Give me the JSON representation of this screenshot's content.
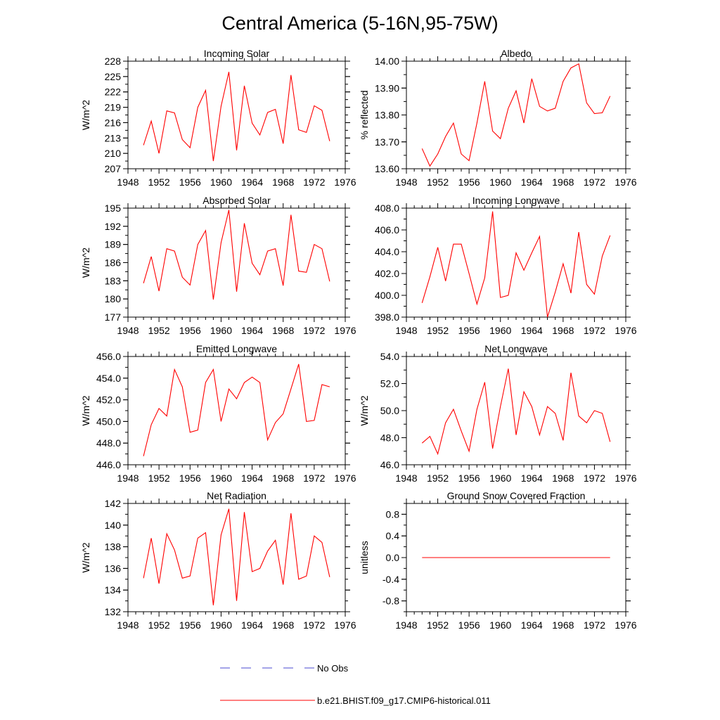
{
  "title": "Central America (5-16N,95-75W)",
  "legend": {
    "placement": "bottom",
    "items": [
      {
        "label": "No Obs",
        "color": "#4a4ad0",
        "style": "dashed"
      },
      {
        "label": "b.e21.BHIST.f09_g17.CMIP6-historical.011",
        "color": "#ff0000",
        "style": "solid"
      }
    ]
  },
  "chart_data": [
    {
      "type": "line",
      "title": "Incoming Solar",
      "ylabel": "W/m^2",
      "xlim": [
        1948,
        1976
      ],
      "ylim": [
        207,
        228
      ],
      "xticks": [
        "1948",
        "1952",
        "1956",
        "1960",
        "1964",
        "1968",
        "1972",
        "1976"
      ],
      "yticks": [
        "207",
        "210",
        "213",
        "216",
        "219",
        "222",
        "225",
        "228"
      ],
      "x": [
        1950,
        1951,
        1952,
        1953,
        1954,
        1955,
        1956,
        1957,
        1958,
        1959,
        1960,
        1961,
        1962,
        1963,
        1964,
        1965,
        1966,
        1967,
        1968,
        1969,
        1970,
        1971,
        1972,
        1973,
        1974
      ],
      "series": [
        {
          "color": "#ff0000",
          "values": [
            211.6,
            216.3,
            210.0,
            218.3,
            217.9,
            212.7,
            211.1,
            219.0,
            222.3,
            208.5,
            219.2,
            225.9,
            210.6,
            223.2,
            215.9,
            213.6,
            218.0,
            218.6,
            211.9,
            225.3,
            214.6,
            214.1,
            219.3,
            218.4,
            212.4
          ]
        }
      ]
    },
    {
      "type": "line",
      "title": "Albedo",
      "ylabel": "% reflected",
      "xlim": [
        1948,
        1976
      ],
      "ylim": [
        13.6,
        14.0
      ],
      "xticks": [
        "1948",
        "1952",
        "1956",
        "1960",
        "1964",
        "1968",
        "1972",
        "1976"
      ],
      "yticks": [
        "13.60",
        "13.70",
        "13.80",
        "13.90",
        "14.00"
      ],
      "x": [
        1950,
        1951,
        1952,
        1953,
        1954,
        1955,
        1956,
        1957,
        1958,
        1959,
        1960,
        1961,
        1962,
        1963,
        1964,
        1965,
        1966,
        1967,
        1968,
        1969,
        1970,
        1971,
        1972,
        1973,
        1974
      ],
      "series": [
        {
          "color": "#ff0000",
          "values": [
            13.675,
            13.61,
            13.655,
            13.72,
            13.77,
            13.655,
            13.63,
            13.77,
            13.925,
            13.74,
            13.712,
            13.825,
            13.89,
            13.77,
            13.935,
            13.832,
            13.815,
            13.825,
            13.925,
            13.975,
            13.99,
            13.845,
            13.805,
            13.808,
            13.87
          ]
        }
      ]
    },
    {
      "type": "line",
      "title": "Absorbed Solar",
      "ylabel": "W/m^2",
      "xlim": [
        1948,
        1976
      ],
      "ylim": [
        177,
        195
      ],
      "xticks": [
        "1948",
        "1952",
        "1956",
        "1960",
        "1964",
        "1968",
        "1972",
        "1976"
      ],
      "yticks": [
        "177",
        "180",
        "183",
        "186",
        "189",
        "192",
        "195"
      ],
      "x": [
        1950,
        1951,
        1952,
        1953,
        1954,
        1955,
        1956,
        1957,
        1958,
        1959,
        1960,
        1961,
        1962,
        1963,
        1964,
        1965,
        1966,
        1967,
        1968,
        1969,
        1970,
        1971,
        1972,
        1973,
        1974
      ],
      "series": [
        {
          "color": "#ff0000",
          "values": [
            182.6,
            187.0,
            181.3,
            188.3,
            187.9,
            183.6,
            182.3,
            189.0,
            191.3,
            179.9,
            189.3,
            194.7,
            181.2,
            192.5,
            185.9,
            184.0,
            187.9,
            188.3,
            182.2,
            193.9,
            184.6,
            184.4,
            189.0,
            188.3,
            182.9
          ]
        }
      ]
    },
    {
      "type": "line",
      "title": "Incoming Longwave",
      "ylabel": "",
      "xlim": [
        1948,
        1976
      ],
      "ylim": [
        398.0,
        408.0
      ],
      "xticks": [
        "1948",
        "1952",
        "1956",
        "1960",
        "1964",
        "1968",
        "1972",
        "1976"
      ],
      "yticks": [
        "398.0",
        "400.0",
        "402.0",
        "404.0",
        "406.0",
        "408.0"
      ],
      "x": [
        1950,
        1951,
        1952,
        1953,
        1954,
        1955,
        1956,
        1957,
        1958,
        1959,
        1960,
        1961,
        1962,
        1963,
        1964,
        1965,
        1966,
        1967,
        1968,
        1969,
        1970,
        1971,
        1972,
        1973,
        1974
      ],
      "series": [
        {
          "color": "#ff0000",
          "values": [
            399.3,
            401.7,
            404.4,
            401.3,
            404.7,
            404.7,
            402.0,
            399.2,
            401.6,
            407.7,
            399.8,
            400.0,
            403.9,
            402.3,
            403.9,
            405.4,
            398.0,
            400.3,
            402.9,
            400.2,
            405.8,
            401.0,
            400.1,
            403.6,
            405.5
          ]
        }
      ]
    },
    {
      "type": "line",
      "title": "Emitted Longwave",
      "ylabel": "W/m^2",
      "xlim": [
        1948,
        1976
      ],
      "ylim": [
        446.0,
        456.0
      ],
      "xticks": [
        "1948",
        "1952",
        "1956",
        "1960",
        "1964",
        "1968",
        "1972",
        "1976"
      ],
      "yticks": [
        "446.0",
        "448.0",
        "450.0",
        "452.0",
        "454.0",
        "456.0"
      ],
      "x": [
        1950,
        1951,
        1952,
        1953,
        1954,
        1955,
        1956,
        1957,
        1958,
        1959,
        1960,
        1961,
        1962,
        1963,
        1964,
        1965,
        1966,
        1967,
        1968,
        1969,
        1970,
        1971,
        1972,
        1973,
        1974
      ],
      "series": [
        {
          "color": "#ff0000",
          "values": [
            446.8,
            449.7,
            451.2,
            450.5,
            454.8,
            453.2,
            449.0,
            449.2,
            453.6,
            454.8,
            450.0,
            453.0,
            452.1,
            453.6,
            454.1,
            453.6,
            448.3,
            449.9,
            450.7,
            453.0,
            455.3,
            450.0,
            450.1,
            453.4,
            453.2
          ]
        }
      ]
    },
    {
      "type": "line",
      "title": "Net Longwave",
      "ylabel": "W/m^2",
      "xlim": [
        1948,
        1976
      ],
      "ylim": [
        46.0,
        54.0
      ],
      "xticks": [
        "1948",
        "1952",
        "1956",
        "1960",
        "1964",
        "1968",
        "1972",
        "1976"
      ],
      "yticks": [
        "46.0",
        "48.0",
        "50.0",
        "52.0",
        "54.0"
      ],
      "x": [
        1950,
        1951,
        1952,
        1953,
        1954,
        1955,
        1956,
        1957,
        1958,
        1959,
        1960,
        1961,
        1962,
        1963,
        1964,
        1965,
        1966,
        1967,
        1968,
        1969,
        1970,
        1971,
        1972,
        1973,
        1974
      ],
      "series": [
        {
          "color": "#ff0000",
          "values": [
            47.6,
            48.1,
            46.8,
            49.1,
            50.1,
            48.5,
            47.0,
            50.1,
            52.1,
            47.2,
            50.3,
            53.1,
            48.2,
            51.4,
            50.3,
            48.2,
            50.3,
            49.8,
            47.8,
            52.8,
            49.6,
            49.1,
            50.0,
            49.8,
            47.7
          ]
        }
      ]
    },
    {
      "type": "line",
      "title": "Net Radiation",
      "ylabel": "W/m^2",
      "xlim": [
        1948,
        1976
      ],
      "ylim": [
        132,
        142
      ],
      "xticks": [
        "1948",
        "1952",
        "1956",
        "1960",
        "1964",
        "1968",
        "1972",
        "1976"
      ],
      "yticks": [
        "132",
        "134",
        "136",
        "138",
        "140",
        "142"
      ],
      "x": [
        1950,
        1951,
        1952,
        1953,
        1954,
        1955,
        1956,
        1957,
        1958,
        1959,
        1960,
        1961,
        1962,
        1963,
        1964,
        1965,
        1966,
        1967,
        1968,
        1969,
        1970,
        1971,
        1972,
        1973,
        1974
      ],
      "series": [
        {
          "color": "#ff0000",
          "values": [
            135.1,
            138.8,
            134.6,
            139.2,
            137.7,
            135.1,
            135.3,
            138.8,
            139.3,
            132.6,
            139.1,
            141.5,
            133.0,
            141.2,
            135.7,
            136.0,
            137.6,
            138.6,
            134.5,
            141.1,
            135.0,
            135.3,
            139.0,
            138.4,
            135.2
          ]
        }
      ]
    },
    {
      "type": "line",
      "title": "Ground Snow Covered Fraction",
      "ylabel": "unitless",
      "xlim": [
        1948,
        1976
      ],
      "ylim": [
        -1.0,
        1.0
      ],
      "xticks": [
        "1948",
        "1952",
        "1956",
        "1960",
        "1964",
        "1968",
        "1972",
        "1976"
      ],
      "yticks": [
        "-0.8",
        "-0.4",
        "0.0",
        "0.4",
        "0.8"
      ],
      "ytick_values": [
        -0.8,
        -0.4,
        0.0,
        0.4,
        0.8
      ],
      "x": [
        1950,
        1951,
        1952,
        1953,
        1954,
        1955,
        1956,
        1957,
        1958,
        1959,
        1960,
        1961,
        1962,
        1963,
        1964,
        1965,
        1966,
        1967,
        1968,
        1969,
        1970,
        1971,
        1972,
        1973,
        1974
      ],
      "series": [
        {
          "color": "#ff0000",
          "values": [
            0,
            0,
            0,
            0,
            0,
            0,
            0,
            0,
            0,
            0,
            0,
            0,
            0,
            0,
            0,
            0,
            0,
            0,
            0,
            0,
            0,
            0,
            0,
            0,
            0
          ]
        }
      ]
    }
  ]
}
